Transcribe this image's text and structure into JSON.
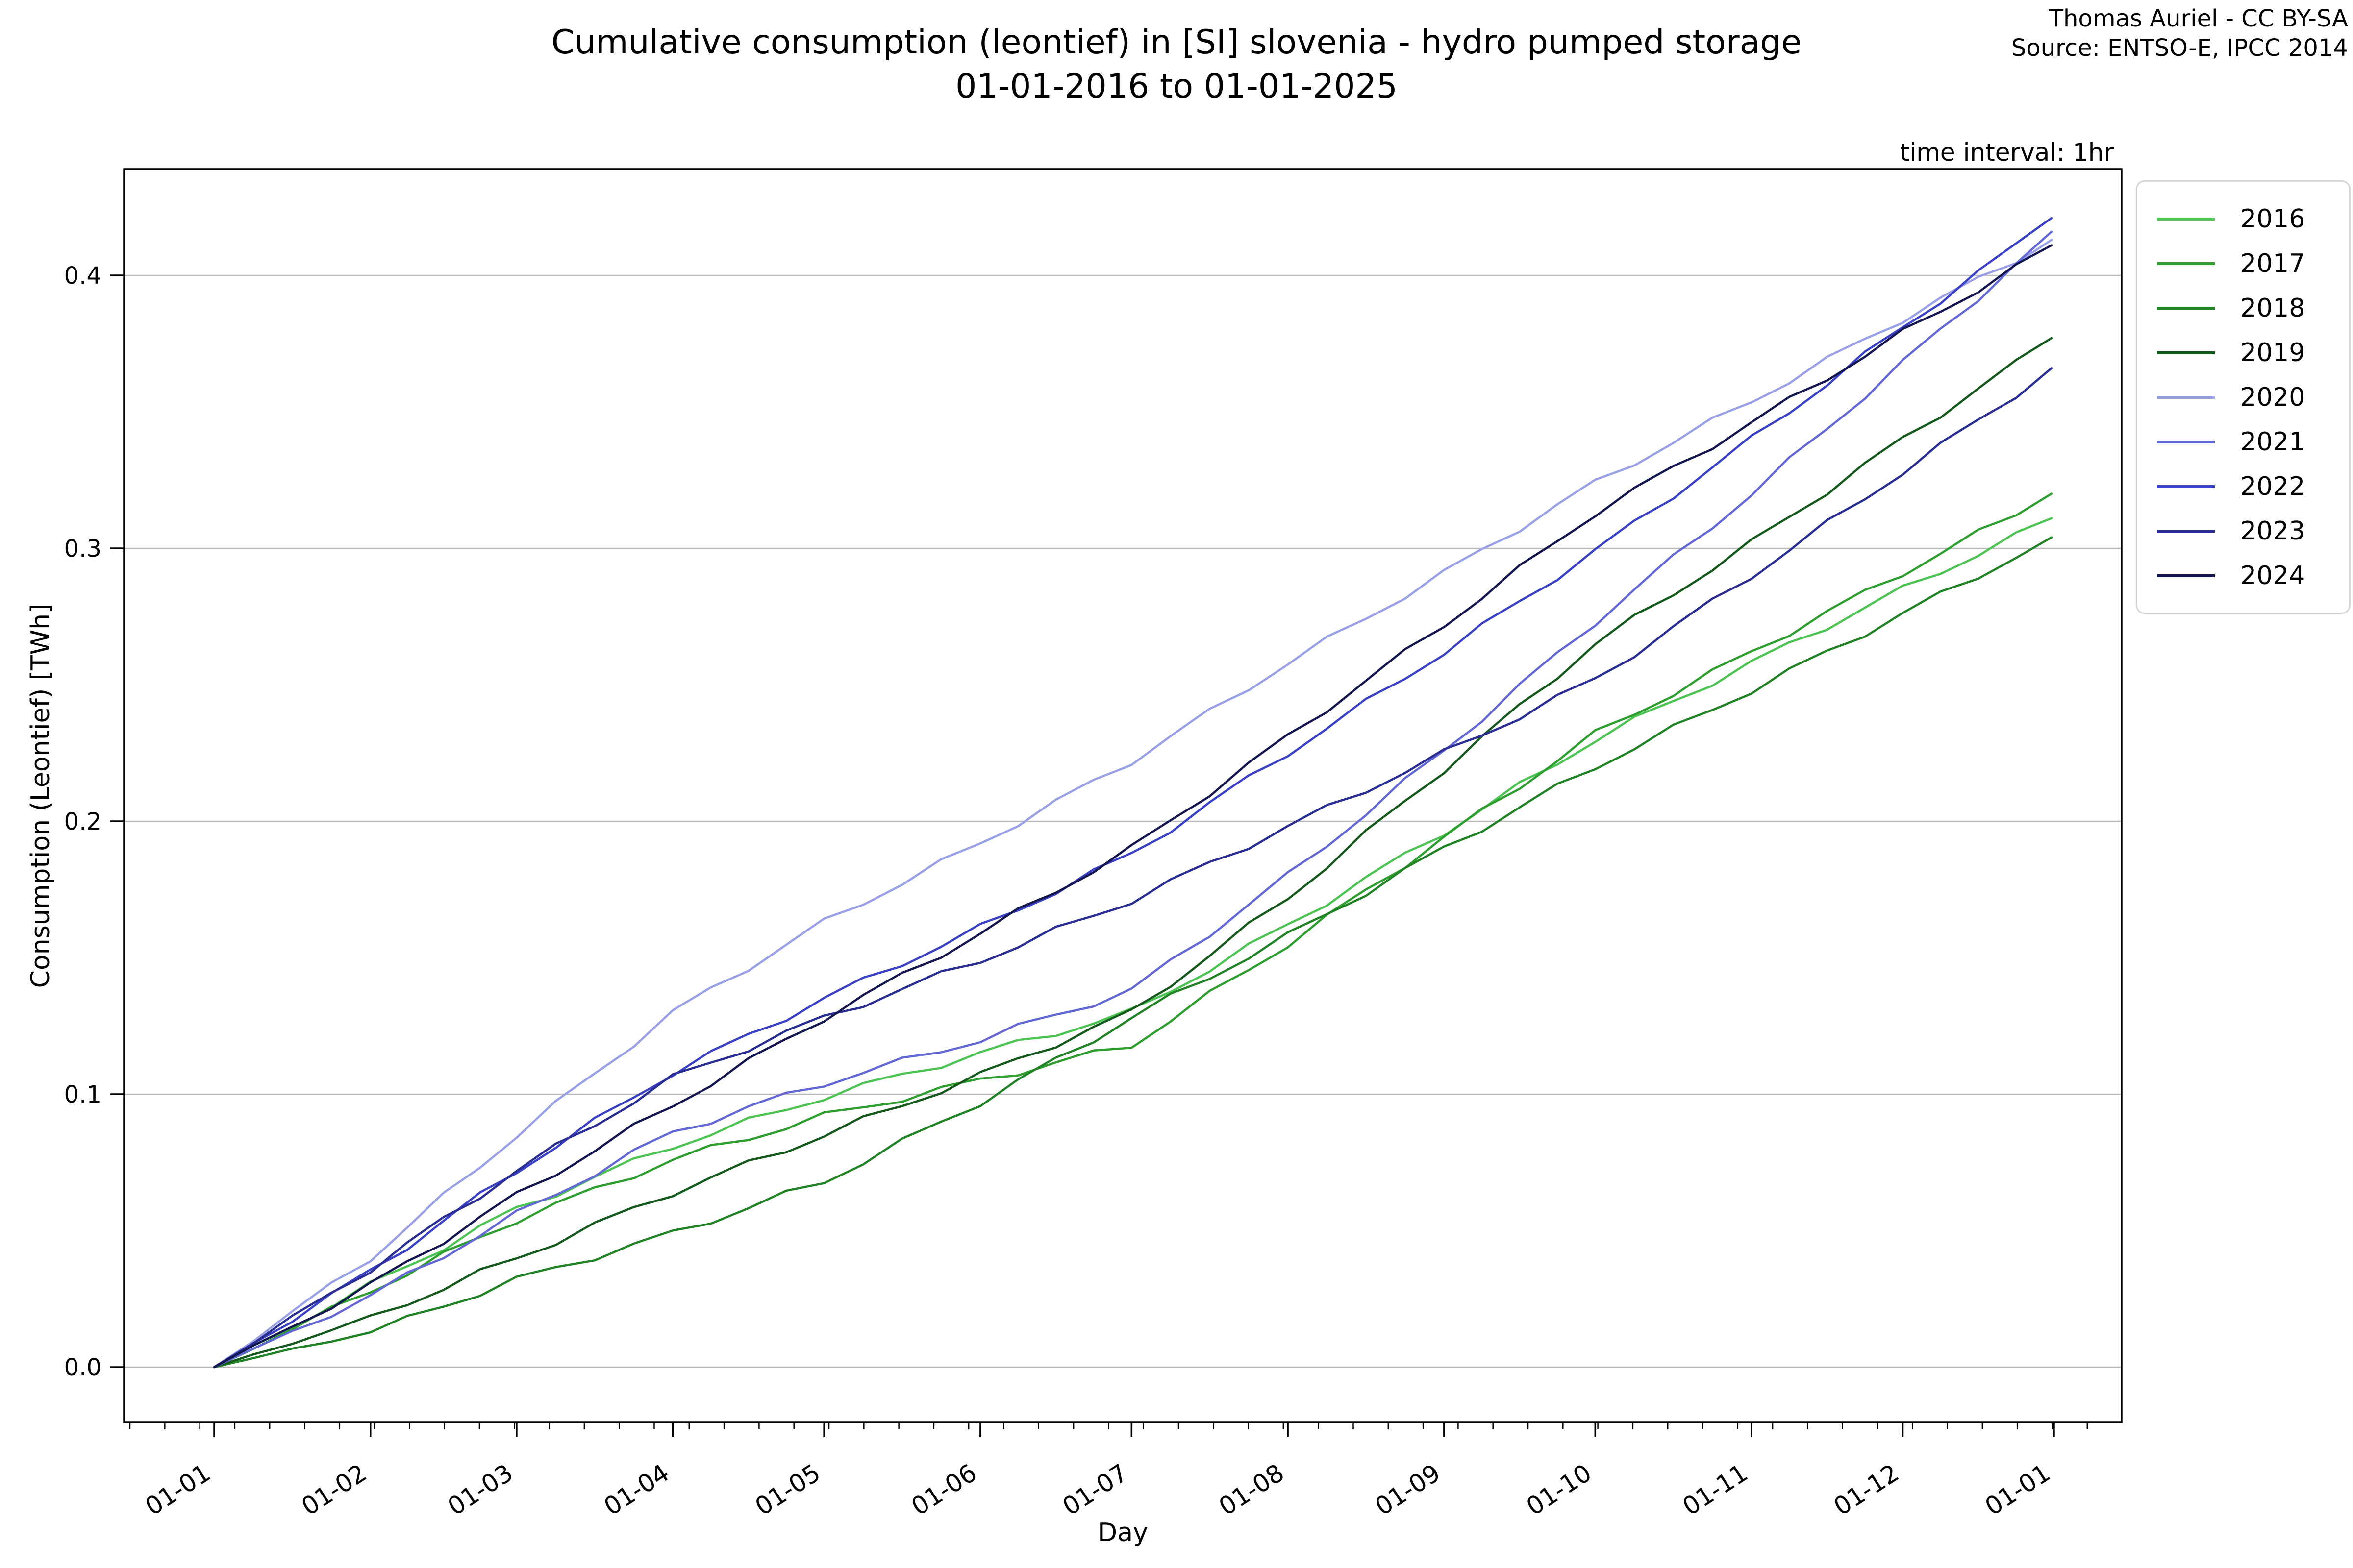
{
  "header": {
    "title_line1": "Cumulative consumption (leontief) in [SI] slovenia - hydro pumped storage",
    "title_line2": "01-01-2016 to 01-01-2025",
    "attribution_line1": "Thomas Auriel - CC BY-SA",
    "attribution_line2": "Source: ENTSO-E, IPCC 2014",
    "time_interval_note": "time interval: 1hr"
  },
  "chart_data": {
    "type": "line",
    "title": "Cumulative consumption (leontief) in [SI] slovenia - hydro pumped storage 01-01-2016 to 01-01-2025",
    "xlabel": "Day",
    "ylabel": "Consumption (Leontief) [TWh]",
    "x_tick_labels": [
      "01-01",
      "01-02",
      "01-03",
      "01-04",
      "01-05",
      "01-06",
      "01-07",
      "01-08",
      "01-09",
      "01-10",
      "01-11",
      "01-12",
      "01-01"
    ],
    "y_ticks": [
      0.0,
      0.1,
      0.2,
      0.3,
      0.4
    ],
    "ylim": [
      -0.021,
      0.442
    ],
    "grid": "horizontal",
    "legend_position": "outside upper right",
    "x_days": [
      0,
      31,
      60,
      91,
      121,
      152,
      182,
      213,
      244,
      274,
      305,
      335,
      365
    ],
    "x_unit": "month starts, Jan 1 through following Jan 1",
    "y_unit": "TWh",
    "series": [
      {
        "name": "2016",
        "color": "#4dc353",
        "values": [
          0.0,
          0.03,
          0.058,
          0.081,
          0.099,
          0.115,
          0.13,
          0.162,
          0.196,
          0.23,
          0.258,
          0.285,
          0.311
        ]
      },
      {
        "name": "2017",
        "color": "#2f9e30",
        "values": [
          0.0,
          0.028,
          0.054,
          0.076,
          0.092,
          0.105,
          0.118,
          0.155,
          0.194,
          0.232,
          0.262,
          0.291,
          0.32
        ]
      },
      {
        "name": "2018",
        "color": "#218226",
        "values": [
          0.0,
          0.013,
          0.032,
          0.049,
          0.068,
          0.097,
          0.128,
          0.158,
          0.19,
          0.22,
          0.248,
          0.276,
          0.304
        ]
      },
      {
        "name": "2019",
        "color": "#155a1c",
        "values": [
          0.0,
          0.018,
          0.04,
          0.064,
          0.085,
          0.107,
          0.13,
          0.172,
          0.219,
          0.265,
          0.302,
          0.34,
          0.377
        ]
      },
      {
        "name": "2020",
        "color": "#9aa0e6",
        "values": [
          0.0,
          0.04,
          0.085,
          0.13,
          0.163,
          0.192,
          0.222,
          0.258,
          0.291,
          0.324,
          0.354,
          0.384,
          0.413
        ]
      },
      {
        "name": "2021",
        "color": "#6468d5",
        "values": [
          0.0,
          0.026,
          0.056,
          0.086,
          0.104,
          0.12,
          0.138,
          0.18,
          0.226,
          0.273,
          0.32,
          0.368,
          0.416
        ]
      },
      {
        "name": "2022",
        "color": "#3a41c4",
        "values": [
          0.0,
          0.035,
          0.072,
          0.108,
          0.135,
          0.161,
          0.188,
          0.225,
          0.262,
          0.299,
          0.34,
          0.381,
          0.421
        ]
      },
      {
        "name": "2023",
        "color": "#2a2e93",
        "values": [
          0.0,
          0.036,
          0.072,
          0.106,
          0.128,
          0.149,
          0.171,
          0.198,
          0.225,
          0.252,
          0.29,
          0.328,
          0.366
        ]
      },
      {
        "name": "2024",
        "color": "#13164f",
        "values": [
          0.0,
          0.03,
          0.063,
          0.096,
          0.128,
          0.159,
          0.19,
          0.231,
          0.272,
          0.313,
          0.346,
          0.379,
          0.411
        ]
      }
    ]
  }
}
